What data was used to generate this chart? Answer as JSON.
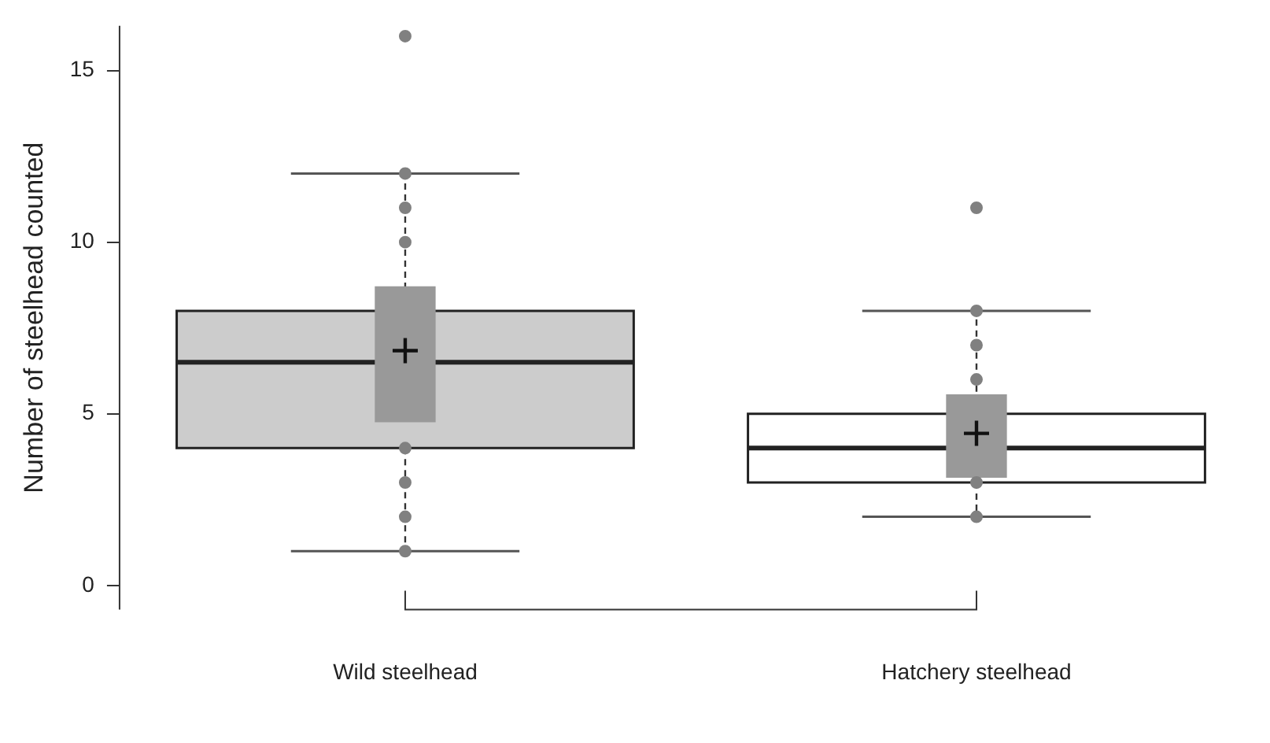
{
  "chart_data": {
    "type": "box",
    "ylabel": "Number of steelhead counted",
    "categories": [
      "Wild steelhead",
      "Hatchery steelhead"
    ],
    "boxes": [
      {
        "low": 1,
        "q1": 4,
        "median": 6.5,
        "q3": 8,
        "high": 12,
        "mean": 6.84
      },
      {
        "low": 2,
        "q1": 3,
        "median": 4,
        "q3": 5,
        "high": 8,
        "mean": 4.43
      }
    ],
    "colors": [
      "#cccccc",
      "#ffffff"
    ],
    "series": [
      {
        "type": "bar",
        "color": "#999999",
        "base": [
          4.77,
          3.15
        ],
        "values": [
          3.93,
          2.4
        ]
      },
      {
        "type": "scatter",
        "color": "#808080",
        "marker": "circle",
        "x": [
          "Wild steelhead",
          "Wild steelhead",
          "Wild steelhead",
          "Wild steelhead",
          "Wild steelhead",
          "Wild steelhead",
          "Wild steelhead",
          "Wild steelhead",
          "Hatchery steelhead",
          "Hatchery steelhead",
          "Hatchery steelhead",
          "Hatchery steelhead",
          "Hatchery steelhead",
          "Hatchery steelhead"
        ],
        "values": [
          16,
          12,
          11,
          10,
          4,
          3,
          2,
          1,
          11,
          8,
          7,
          6,
          3,
          2
        ]
      }
    ],
    "ylim": [
      -0.7,
      16.3
    ],
    "yticks": [
      0,
      5,
      10,
      15
    ],
    "grid": false,
    "legend": false
  }
}
